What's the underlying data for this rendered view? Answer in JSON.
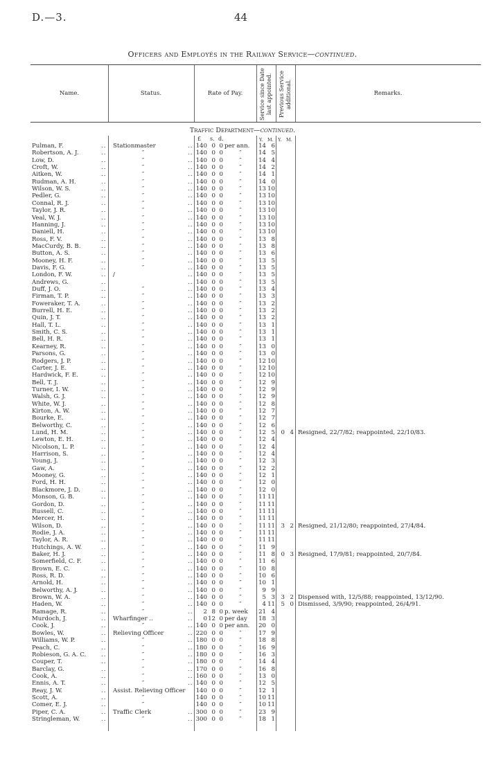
{
  "page": {
    "doc_ref": "D.—3.",
    "page_number": "44",
    "title": "Officers and Employés in the Railway Service",
    "title_suffix": "—continued."
  },
  "table": {
    "headers": {
      "name": "Name.",
      "status": "Status.",
      "rate": "Rate of Pay.",
      "service": "Service since Date last appointed.",
      "previous": "Previous Service additional.",
      "remarks": "Remarks."
    },
    "section": "Traffic Department",
    "section_suffix": "—continued.",
    "units": {
      "pounds": "£",
      "shillings": "s.",
      "pence": "d.",
      "y": "Y.",
      "m": "M.",
      "py": "Y.",
      "pm": "M."
    },
    "rows": [
      {
        "name": "Pulman, F.",
        "status": "Stationmaster",
        "l": "140",
        "s": "0",
        "d": "0",
        "per": "per ann.",
        "y": "14",
        "m": "6"
      },
      {
        "name": "Robertson, A. J.",
        "status": "″",
        "l": "140",
        "s": "0",
        "d": "0",
        "per": "″",
        "y": "14",
        "m": "5"
      },
      {
        "name": "Low, D.",
        "status": "″",
        "l": "140",
        "s": "0",
        "d": "0",
        "per": "″",
        "y": "14",
        "m": "4"
      },
      {
        "name": "Croft, W.",
        "status": "″",
        "l": "140",
        "s": "0",
        "d": "0",
        "per": "″",
        "y": "14",
        "m": "2"
      },
      {
        "name": "Aitken, W.",
        "status": "″",
        "l": "140",
        "s": "0",
        "d": "0",
        "per": "″",
        "y": "14",
        "m": "1"
      },
      {
        "name": "Rudman, A. H.",
        "status": "″",
        "l": "140",
        "s": "0",
        "d": "0",
        "per": "″",
        "y": "14",
        "m": "0"
      },
      {
        "name": "Wilson, W. S.",
        "status": "″",
        "l": "140",
        "s": "0",
        "d": "0",
        "per": "″",
        "y": "13",
        "m": "10"
      },
      {
        "name": "Pedler, G.",
        "status": "″",
        "l": "140",
        "s": "0",
        "d": "0",
        "per": "″",
        "y": "13",
        "m": "10"
      },
      {
        "name": "Connal, R. J.",
        "status": "″",
        "l": "140",
        "s": "0",
        "d": "0",
        "per": "″",
        "y": "13",
        "m": "10"
      },
      {
        "name": "Taylor, J. R.",
        "status": "″",
        "l": "140",
        "s": "0",
        "d": "0",
        "per": "″",
        "y": "13",
        "m": "10"
      },
      {
        "name": "Veal, W. J.",
        "status": "″",
        "l": "140",
        "s": "0",
        "d": "0",
        "per": "″",
        "y": "13",
        "m": "10"
      },
      {
        "name": "Hanning, J.",
        "status": "″",
        "l": "140",
        "s": "0",
        "d": "0",
        "per": "″",
        "y": "13",
        "m": "10"
      },
      {
        "name": "Daniell, H.",
        "status": "″",
        "l": "140",
        "s": "0",
        "d": "0",
        "per": "″",
        "y": "13",
        "m": "10"
      },
      {
        "name": "Ross, F. V.",
        "status": "″",
        "l": "140",
        "s": "0",
        "d": "0",
        "per": "″",
        "y": "13",
        "m": "8"
      },
      {
        "name": "MacCurdy, B. B.",
        "status": "″",
        "l": "140",
        "s": "0",
        "d": "0",
        "per": "″",
        "y": "13",
        "m": "8"
      },
      {
        "name": "Button, A. S.",
        "status": "″",
        "l": "140",
        "s": "0",
        "d": "0",
        "per": "″",
        "y": "13",
        "m": "6"
      },
      {
        "name": "Mooney, H. F.",
        "status": "″",
        "l": "140",
        "s": "0",
        "d": "0",
        "per": "″",
        "y": "13",
        "m": "5"
      },
      {
        "name": "Davis, F. G.",
        "status": "″",
        "l": "140",
        "s": "0",
        "d": "0",
        "per": "″",
        "y": "13",
        "m": "5"
      },
      {
        "name": "London, F. W.",
        "status": "/",
        "l": "140",
        "s": "0",
        "d": "0",
        "per": "″",
        "y": "13",
        "m": "5"
      },
      {
        "name": "Andrews, G.",
        "status": "",
        "l": "140",
        "s": "0",
        "d": "0",
        "per": "″",
        "y": "13",
        "m": "5"
      },
      {
        "name": "Duff, J. O.",
        "status": "″",
        "l": "140",
        "s": "0",
        "d": "0",
        "per": "″",
        "y": "13",
        "m": "4"
      },
      {
        "name": "Firman, T. P.",
        "status": "″",
        "l": "140",
        "s": "0",
        "d": "0",
        "per": "″",
        "y": "13",
        "m": "3"
      },
      {
        "name": "Foweraker, T. A.",
        "status": "″",
        "l": "140",
        "s": "0",
        "d": "0",
        "per": "″",
        "y": "13",
        "m": "2"
      },
      {
        "name": "Burrell, H. E.",
        "status": "″",
        "l": "140",
        "s": "0",
        "d": "0",
        "per": "″",
        "y": "13",
        "m": "2"
      },
      {
        "name": "Quin, J. T.",
        "status": "″",
        "l": "140",
        "s": "0",
        "d": "0",
        "per": "″",
        "y": "13",
        "m": "2"
      },
      {
        "name": "Hall, T. L.",
        "status": "″",
        "l": "140",
        "s": "0",
        "d": "0",
        "per": "″",
        "y": "13",
        "m": "1"
      },
      {
        "name": "Smith, C. S.",
        "status": "″",
        "l": "140",
        "s": "0",
        "d": "0",
        "per": "″",
        "y": "13",
        "m": "1"
      },
      {
        "name": "Bell, H. R.",
        "status": "″",
        "l": "140",
        "s": "0",
        "d": "0",
        "per": "″",
        "y": "13",
        "m": "1"
      },
      {
        "name": "Kearney, R.",
        "status": "″",
        "l": "140",
        "s": "0",
        "d": "0",
        "per": "″",
        "y": "13",
        "m": "0"
      },
      {
        "name": "Parsons, G.",
        "status": "″",
        "l": "140",
        "s": "0",
        "d": "0",
        "per": "″",
        "y": "13",
        "m": "0"
      },
      {
        "name": "Rodgers, J. P.",
        "status": "″",
        "l": "140",
        "s": "0",
        "d": "0",
        "per": "″",
        "y": "12",
        "m": "10"
      },
      {
        "name": "Carter, J. E.",
        "status": "″",
        "l": "140",
        "s": "0",
        "d": "0",
        "per": "″",
        "y": "12",
        "m": "10"
      },
      {
        "name": "Hardwick, F. E.",
        "status": "″",
        "l": "140",
        "s": "0",
        "d": "0",
        "per": "″",
        "y": "12",
        "m": "10"
      },
      {
        "name": "Bell, T. J.",
        "status": "″",
        "l": "140",
        "s": "0",
        "d": "0",
        "per": "″",
        "y": "12",
        "m": "9"
      },
      {
        "name": "Turner, I. W.",
        "status": "″",
        "l": "140",
        "s": "0",
        "d": "0",
        "per": "″",
        "y": "12",
        "m": "9"
      },
      {
        "name": "Walsh, G. J.",
        "status": "″",
        "l": "140",
        "s": "0",
        "d": "0",
        "per": "″",
        "y": "12",
        "m": "9"
      },
      {
        "name": "White, W. J.",
        "status": "″",
        "l": "140",
        "s": "0",
        "d": "0",
        "per": "″",
        "y": "12",
        "m": "8"
      },
      {
        "name": "Kirton, A. W.",
        "status": "″",
        "l": "140",
        "s": "0",
        "d": "0",
        "per": "″",
        "y": "12",
        "m": "7"
      },
      {
        "name": "Bourke, E.",
        "status": "″",
        "l": "140",
        "s": "0",
        "d": "0",
        "per": "″",
        "y": "12",
        "m": "7"
      },
      {
        "name": "Belworthy, C.",
        "status": "″",
        "l": "140",
        "s": "0",
        "d": "0",
        "per": "″",
        "y": "12",
        "m": "6"
      },
      {
        "name": "Lund, H. M.",
        "status": "″",
        "l": "140",
        "s": "0",
        "d": "0",
        "per": "″",
        "y": "12",
        "m": "5",
        "py": "0",
        "pm": "4",
        "remarks": "Resigned, 22/7/82; reappointed, 22/10/83."
      },
      {
        "name": "Lewton, E. H.",
        "status": "″",
        "l": "140",
        "s": "0",
        "d": "0",
        "per": "″",
        "y": "12",
        "m": "4"
      },
      {
        "name": "Nicolson, L. P.",
        "status": "″",
        "l": "140",
        "s": "0",
        "d": "0",
        "per": "″",
        "y": "12",
        "m": "4"
      },
      {
        "name": "Harrison, S.",
        "status": "″",
        "l": "140",
        "s": "0",
        "d": "0",
        "per": "″",
        "y": "12",
        "m": "4"
      },
      {
        "name": "Young, J.",
        "status": "″",
        "l": "140",
        "s": "0",
        "d": "0",
        "per": "″",
        "y": "12",
        "m": "3"
      },
      {
        "name": "Gaw, A.",
        "status": "″",
        "l": "140",
        "s": "0",
        "d": "0",
        "per": "″",
        "y": "12",
        "m": "2"
      },
      {
        "name": "Mooney, G.",
        "status": "″",
        "l": "140",
        "s": "0",
        "d": "0",
        "per": "″",
        "y": "12",
        "m": "1"
      },
      {
        "name": "Ford, H. H.",
        "status": "″",
        "l": "140",
        "s": "0",
        "d": "0",
        "per": "″",
        "y": "12",
        "m": "0"
      },
      {
        "name": "Blackmore, J. D.",
        "status": "″",
        "l": "140",
        "s": "0",
        "d": "0",
        "per": "″",
        "y": "12",
        "m": "0"
      },
      {
        "name": "Monson, G. B.",
        "status": "″",
        "l": "140",
        "s": "0",
        "d": "0",
        "per": "″",
        "y": "11",
        "m": "11"
      },
      {
        "name": "Gordon, D.",
        "status": "″",
        "l": "140",
        "s": "0",
        "d": "0",
        "per": "″",
        "y": "11",
        "m": "11"
      },
      {
        "name": "Russell, C.",
        "status": "″",
        "l": "140",
        "s": "0",
        "d": "0",
        "per": "″",
        "y": "11",
        "m": "11"
      },
      {
        "name": "Mercer, H.",
        "status": "″",
        "l": "140",
        "s": "0",
        "d": "0",
        "per": "″",
        "y": "11",
        "m": "11"
      },
      {
        "name": "Wilson, D.",
        "status": "″",
        "l": "140",
        "s": "0",
        "d": "0",
        "per": "″",
        "y": "11",
        "m": "11",
        "py": "3",
        "pm": "2",
        "remarks": "Resigned, 21/12/80; reappointed, 27/4/84."
      },
      {
        "name": "Rodie, J. A.",
        "status": "″",
        "l": "140",
        "s": "0",
        "d": "0",
        "per": "″",
        "y": "11",
        "m": "11"
      },
      {
        "name": "Taylor, A. R.",
        "status": "″",
        "l": "140",
        "s": "0",
        "d": "0",
        "per": "″",
        "y": "11",
        "m": "11"
      },
      {
        "name": "Hutchings, A. W.",
        "status": "″",
        "l": "140",
        "s": "0",
        "d": "0",
        "per": "″",
        "y": "11",
        "m": "9"
      },
      {
        "name": "Baker, H. J.",
        "status": "″",
        "l": "140",
        "s": "0",
        "d": "0",
        "per": "″",
        "y": "11",
        "m": "8",
        "py": "0",
        "pm": "3",
        "remarks": "Resigned, 17/9/81; reappointed, 20/7/84."
      },
      {
        "name": "Somerfield, C. F.",
        "status": "″",
        "l": "140",
        "s": "0",
        "d": "0",
        "per": "″",
        "y": "11",
        "m": "6"
      },
      {
        "name": "Brown, E. C.",
        "status": "″",
        "l": "140",
        "s": "0",
        "d": "0",
        "per": "″",
        "y": "10",
        "m": "8"
      },
      {
        "name": "Ross, R. D.",
        "status": "″",
        "l": "140",
        "s": "0",
        "d": "0",
        "per": "″",
        "y": "10",
        "m": "6"
      },
      {
        "name": "Arnold, H.",
        "status": "″",
        "l": "140",
        "s": "0",
        "d": "0",
        "per": "″",
        "y": "10",
        "m": "1"
      },
      {
        "name": "Belworthy, A. J.",
        "status": "″",
        "l": "140",
        "s": "0",
        "d": "0",
        "per": "″",
        "y": "9",
        "m": "9"
      },
      {
        "name": "Brown, W. A.",
        "status": "″",
        "l": "140",
        "s": "0",
        "d": "0",
        "per": "″",
        "y": "5",
        "m": "3",
        "py": "3",
        "pm": "2",
        "remarks": "Dispensed with, 12/5/88; reappointed, 13/12/90."
      },
      {
        "name": "Haden, W.",
        "status": "″",
        "l": "140",
        "s": "0",
        "d": "0",
        "per": "″",
        "y": "4",
        "m": "11",
        "py": "5",
        "pm": "0",
        "remarks": "Dismissed, 3/9/90; reappointed, 26/4/91."
      },
      {
        "name": "Ramage, R.",
        "status": "″",
        "l": "2",
        "s": "8",
        "d": "0",
        "per": "p. week",
        "y": "21",
        "m": "4"
      },
      {
        "name": "Murdoch, J.",
        "status": "Wharfinger ..",
        "l": "0",
        "s": "12",
        "d": "0",
        "per": "per day",
        "y": "18",
        "m": "3"
      },
      {
        "name": "Cook, J.",
        "status": "″",
        "l": "140",
        "s": "0",
        "d": "0",
        "per": "per ann.",
        "y": "20",
        "m": "0"
      },
      {
        "name": "Bowles, W.",
        "status": "Relieving Officer",
        "l": "220",
        "s": "0",
        "d": "0",
        "per": "″",
        "y": "17",
        "m": "9"
      },
      {
        "name": "Williams, W. P.",
        "status": "″",
        "l": "180",
        "s": "0",
        "d": "0",
        "per": "″",
        "y": "18",
        "m": "8"
      },
      {
        "name": "Peach, C.",
        "status": "″",
        "l": "180",
        "s": "0",
        "d": "0",
        "per": "″",
        "y": "16",
        "m": "9"
      },
      {
        "name": "Robieson, G. A. C.",
        "status": "″",
        "l": "180",
        "s": "0",
        "d": "0",
        "per": "″",
        "y": "16",
        "m": "3"
      },
      {
        "name": "Couper, T.",
        "status": "″",
        "l": "180",
        "s": "0",
        "d": "0",
        "per": "″",
        "y": "14",
        "m": "4"
      },
      {
        "name": "Barclay, G.",
        "status": "″",
        "l": "170",
        "s": "0",
        "d": "0",
        "per": "″",
        "y": "16",
        "m": "8"
      },
      {
        "name": "Cook, A.",
        "status": "″",
        "l": "160",
        "s": "0",
        "d": "0",
        "per": "″",
        "y": "13",
        "m": "0"
      },
      {
        "name": "Ennis, A. T.",
        "status": "″",
        "l": "140",
        "s": "0",
        "d": "0",
        "per": "″",
        "y": "12",
        "m": "5"
      },
      {
        "name": "Reay, J. W.",
        "status": "Assist. Relieving Officer",
        "l": "140",
        "s": "0",
        "d": "0",
        "per": "″",
        "y": "12",
        "m": "1",
        "nodots": true
      },
      {
        "name": "Scott, A.",
        "status": "″",
        "l": "140",
        "s": "0",
        "d": "0",
        "per": "″",
        "y": "10",
        "m": "11",
        "nodots": true
      },
      {
        "name": "Comer, E. J.",
        "status": "″",
        "l": "140",
        "s": "0",
        "d": "0",
        "per": "″",
        "y": "10",
        "m": "11",
        "nodots": true
      },
      {
        "name": "Piper, C. A.",
        "status": "Traffic Clerk",
        "l": "300",
        "s": "0",
        "d": "0",
        "per": "″",
        "y": "23",
        "m": "9"
      },
      {
        "name": "Stringleman, W.",
        "status": "″",
        "l": "300",
        "s": "0",
        "d": "0",
        "per": "″",
        "y": "18",
        "m": "1"
      }
    ]
  }
}
